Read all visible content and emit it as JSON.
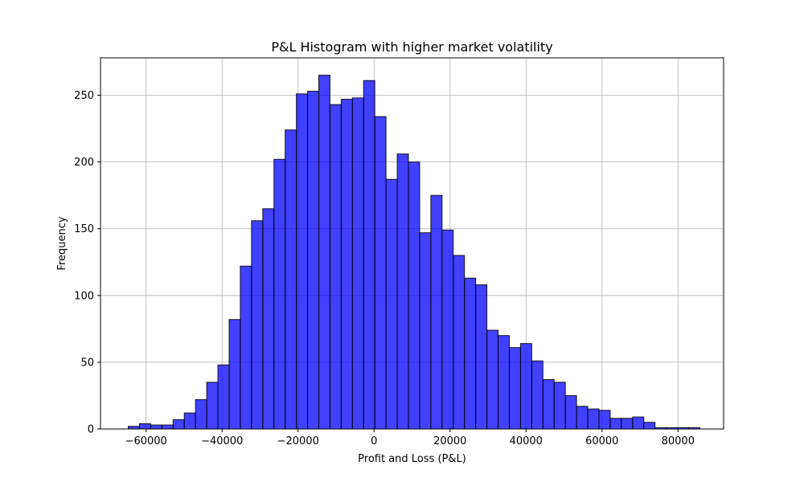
{
  "chart_data": {
    "type": "bar",
    "title": "P&L Histogram with higher market volatility",
    "xlabel": "Profit and Loss (P&L)",
    "ylabel": "Frequency",
    "xlim": [
      -72000,
      92000
    ],
    "ylim": [
      0,
      278
    ],
    "xticks": [
      -60000,
      -40000,
      -20000,
      0,
      20000,
      40000,
      60000,
      80000
    ],
    "xtick_labels": [
      "−60000",
      "−40000",
      "−20000",
      "0",
      "20000",
      "40000",
      "60000",
      "80000"
    ],
    "yticks": [
      0,
      50,
      100,
      150,
      200,
      250
    ],
    "ytick_labels": [
      "0",
      "50",
      "100",
      "150",
      "200",
      "250"
    ],
    "grid": true,
    "bar_color": "#0000ff",
    "bar_opacity": 0.75,
    "edge_color": "#000000",
    "bins": [
      {
        "x0": -64700,
        "x1": -61750,
        "count": 2
      },
      {
        "x0": -61750,
        "x1": -58800,
        "count": 4
      },
      {
        "x0": -58800,
        "x1": -55850,
        "count": 3
      },
      {
        "x0": -55850,
        "x1": -52900,
        "count": 3
      },
      {
        "x0": -52900,
        "x1": -49950,
        "count": 7
      },
      {
        "x0": -49950,
        "x1": -47000,
        "count": 12
      },
      {
        "x0": -47000,
        "x1": -44050,
        "count": 22
      },
      {
        "x0": -44050,
        "x1": -41100,
        "count": 35
      },
      {
        "x0": -41100,
        "x1": -38150,
        "count": 48
      },
      {
        "x0": -38150,
        "x1": -35200,
        "count": 82
      },
      {
        "x0": -35200,
        "x1": -32250,
        "count": 122
      },
      {
        "x0": -32250,
        "x1": -29300,
        "count": 156
      },
      {
        "x0": -29300,
        "x1": -26350,
        "count": 165
      },
      {
        "x0": -26350,
        "x1": -23400,
        "count": 202
      },
      {
        "x0": -23400,
        "x1": -20450,
        "count": 224
      },
      {
        "x0": -20450,
        "x1": -17500,
        "count": 251
      },
      {
        "x0": -17500,
        "x1": -14550,
        "count": 253
      },
      {
        "x0": -14550,
        "x1": -11600,
        "count": 265
      },
      {
        "x0": -11600,
        "x1": -8650,
        "count": 243
      },
      {
        "x0": -8650,
        "x1": -5700,
        "count": 247
      },
      {
        "x0": -5700,
        "x1": -2750,
        "count": 248
      },
      {
        "x0": -2750,
        "x1": 200,
        "count": 261
      },
      {
        "x0": 200,
        "x1": 3150,
        "count": 234
      },
      {
        "x0": 3150,
        "x1": 6100,
        "count": 187
      },
      {
        "x0": 6100,
        "x1": 9050,
        "count": 206
      },
      {
        "x0": 9050,
        "x1": 12000,
        "count": 200
      },
      {
        "x0": 12000,
        "x1": 14950,
        "count": 147
      },
      {
        "x0": 14950,
        "x1": 17900,
        "count": 175
      },
      {
        "x0": 17900,
        "x1": 20850,
        "count": 149
      },
      {
        "x0": 20850,
        "x1": 23800,
        "count": 130
      },
      {
        "x0": 23800,
        "x1": 26750,
        "count": 113
      },
      {
        "x0": 26750,
        "x1": 29700,
        "count": 108
      },
      {
        "x0": 29700,
        "x1": 32650,
        "count": 74
      },
      {
        "x0": 32650,
        "x1": 35600,
        "count": 70
      },
      {
        "x0": 35600,
        "x1": 38550,
        "count": 61
      },
      {
        "x0": 38550,
        "x1": 41500,
        "count": 64
      },
      {
        "x0": 41500,
        "x1": 44450,
        "count": 51
      },
      {
        "x0": 44450,
        "x1": 47400,
        "count": 37
      },
      {
        "x0": 47400,
        "x1": 50350,
        "count": 35
      },
      {
        "x0": 50350,
        "x1": 53300,
        "count": 25
      },
      {
        "x0": 53300,
        "x1": 56250,
        "count": 17
      },
      {
        "x0": 56250,
        "x1": 59200,
        "count": 15
      },
      {
        "x0": 59200,
        "x1": 62150,
        "count": 14
      },
      {
        "x0": 62150,
        "x1": 65100,
        "count": 8
      },
      {
        "x0": 65100,
        "x1": 68050,
        "count": 8
      },
      {
        "x0": 68050,
        "x1": 71000,
        "count": 9
      },
      {
        "x0": 71000,
        "x1": 73950,
        "count": 5
      },
      {
        "x0": 73950,
        "x1": 76900,
        "count": 1
      },
      {
        "x0": 76900,
        "x1": 79850,
        "count": 1
      },
      {
        "x0": 79850,
        "x1": 82800,
        "count": 1
      },
      {
        "x0": 82800,
        "x1": 85750,
        "count": 1
      }
    ]
  }
}
